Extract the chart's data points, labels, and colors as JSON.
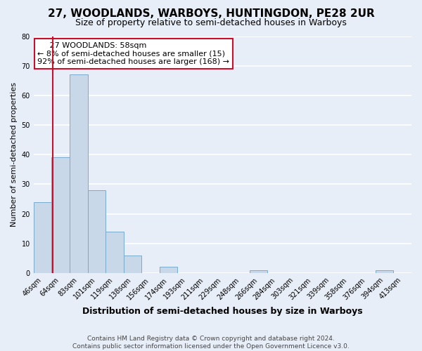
{
  "title": "27, WOODLANDS, WARBOYS, HUNTINGDON, PE28 2UR",
  "subtitle": "Size of property relative to semi-detached houses in Warboys",
  "xlabel": "Distribution of semi-detached houses by size in Warboys",
  "ylabel": "Number of semi-detached properties",
  "bar_labels": [
    "46sqm",
    "64sqm",
    "83sqm",
    "101sqm",
    "119sqm",
    "138sqm",
    "156sqm",
    "174sqm",
    "193sqm",
    "211sqm",
    "229sqm",
    "248sqm",
    "266sqm",
    "284sqm",
    "303sqm",
    "321sqm",
    "339sqm",
    "358sqm",
    "376sqm",
    "394sqm",
    "413sqm"
  ],
  "bar_values": [
    24,
    39,
    67,
    28,
    14,
    6,
    0,
    2,
    0,
    0,
    0,
    0,
    1,
    0,
    0,
    0,
    0,
    0,
    0,
    1,
    0
  ],
  "bar_color": "#c8d8e8",
  "bar_edge_color": "#7aabca",
  "highlight_color": "#c8102e",
  "red_line_x": 0.58,
  "ylim": [
    0,
    80
  ],
  "yticks": [
    0,
    10,
    20,
    30,
    40,
    50,
    60,
    70,
    80
  ],
  "annotation_title": "27 WOODLANDS: 58sqm",
  "annotation_line1": "← 8% of semi-detached houses are smaller (15)",
  "annotation_line2": "92% of semi-detached houses are larger (168) →",
  "footer_line1": "Contains HM Land Registry data © Crown copyright and database right 2024.",
  "footer_line2": "Contains public sector information licensed under the Open Government Licence v3.0.",
  "background_color": "#e8eef8"
}
